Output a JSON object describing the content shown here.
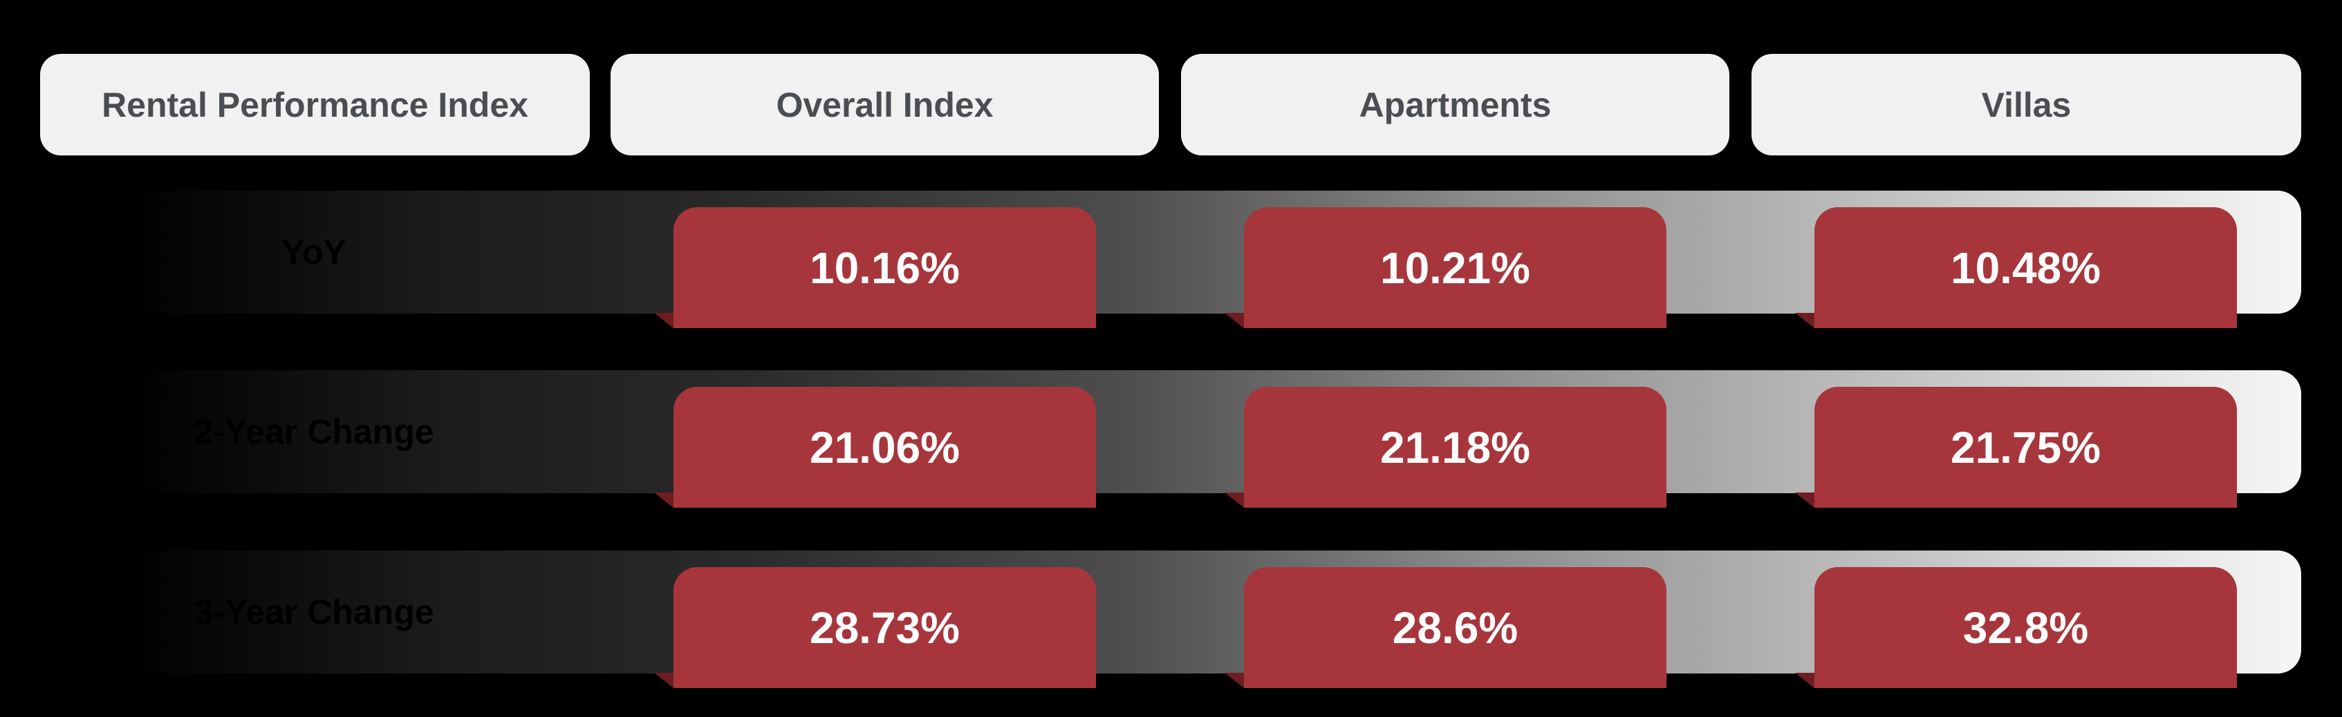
{
  "header": {
    "title": "Rental Performance Index",
    "columns": [
      "Overall Index",
      "Apartments",
      "Villas"
    ]
  },
  "table": {
    "rows": [
      {
        "label": "YoY",
        "values": [
          "10.16%",
          "10.21%",
          "10.48%"
        ]
      },
      {
        "label": "2-Year Change",
        "values": [
          "21.06%",
          "21.18%",
          "21.75%"
        ]
      },
      {
        "label": "3-Year Change",
        "values": [
          "28.73%",
          "28.6%",
          "32.8%"
        ]
      }
    ]
  }
}
